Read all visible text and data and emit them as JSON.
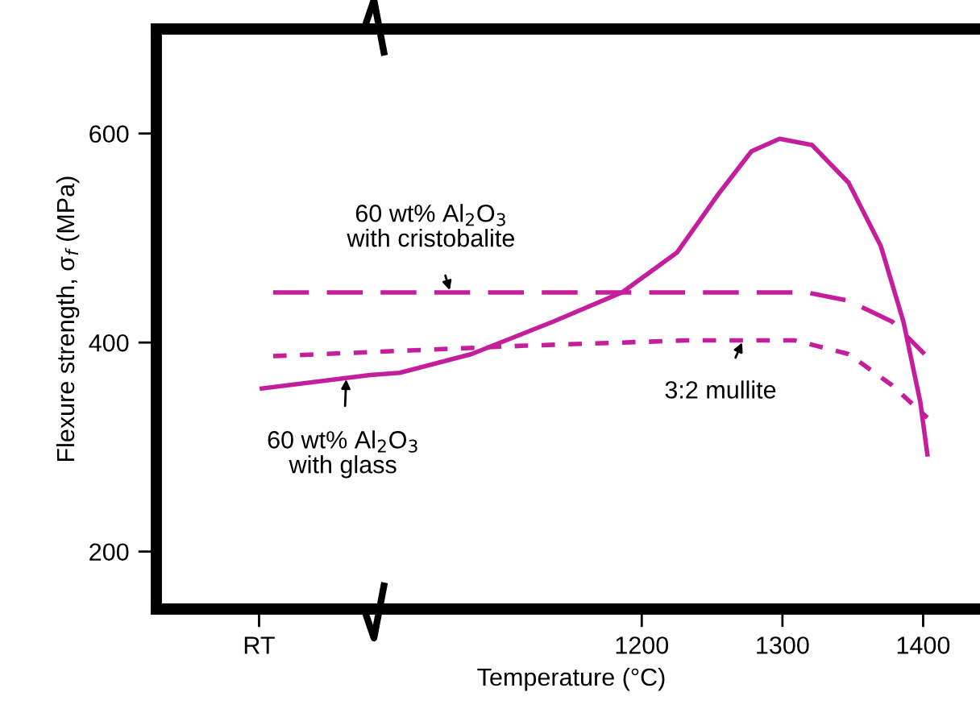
{
  "chart_data": {
    "type": "line",
    "xlabel": "Temperature (°C)",
    "ylabel": "Flexure strength, σ$_{f}$ (MPa)",
    "xlim": [
      855,
      1445
    ],
    "ylim": [
      145,
      700
    ],
    "xticks": [
      {
        "value": 928,
        "label": "RT"
      },
      1200,
      1300,
      1400
    ],
    "yticks": [
      200,
      400,
      600
    ],
    "grid": false,
    "legend": false,
    "marker": "none",
    "series": [
      {
        "color": "#c41e9c",
        "line_style": "dashed",
        "x": [
          938,
          1317,
          1347,
          1378,
          1401
        ],
        "values": [
          448,
          448,
          440,
          420,
          389
        ]
      },
      {
        "color": "#c41e9c",
        "line_style": "dotted",
        "x": [
          938,
          1117,
          1232,
          1309,
          1347,
          1378,
          1403
        ],
        "values": [
          387,
          397,
          402,
          402,
          389,
          359,
          328
        ]
      },
      {
        "color": "#c41e9c",
        "line_style": "solid",
        "x": [
          930,
          1007,
          1028,
          1079,
          1137,
          1186,
          1225,
          1255,
          1278,
          1298,
          1321,
          1347,
          1370,
          1386,
          1398,
          1403
        ],
        "values": [
          356,
          369,
          371,
          389,
          420,
          448,
          486,
          543,
          583,
          595,
          589,
          553,
          492,
          420,
          343,
          293
        ]
      }
    ],
    "annotations": [
      {
        "text": "60 wt% Al$_{2}$O$_{3}$\nwith cristobalite",
        "x": 1064,
        "y": 448
      },
      {
        "text": "3:2 mullite",
        "x": 1272,
        "y": 402
      },
      {
        "text": "60 wt% Al$_{2}$O$_{3}$\nwith glass",
        "x": 990,
        "y": 367
      }
    ]
  }
}
